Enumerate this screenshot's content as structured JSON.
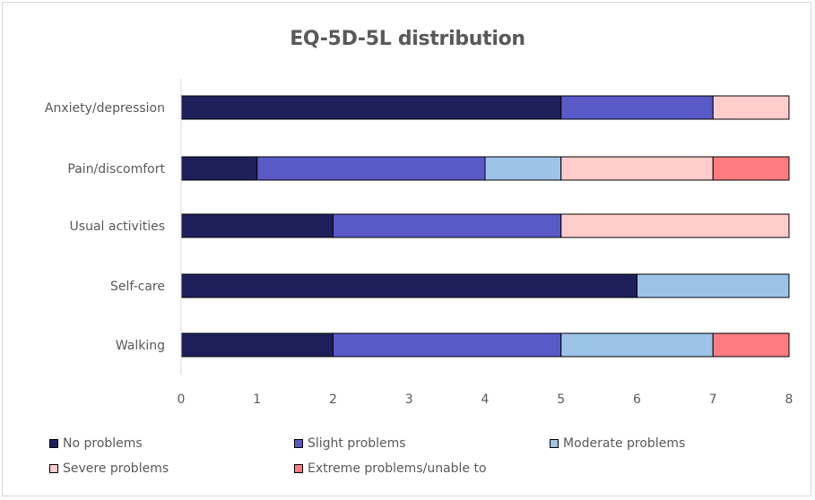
{
  "chart_data": {
    "type": "bar",
    "orientation": "horizontal",
    "stacked": true,
    "title": "EQ-5D-5L distribution",
    "xlabel": "",
    "ylabel": "",
    "xlim": [
      0,
      8
    ],
    "xticks": [
      "0",
      "1",
      "2",
      "3",
      "4",
      "5",
      "6",
      "7",
      "8"
    ],
    "categories": [
      "Anxiety/depression",
      "Pain/discomfort",
      "Usual activities",
      "Self-care",
      "Walking"
    ],
    "series": [
      {
        "name": "No problems",
        "color": "#1f1f5c",
        "values": [
          5,
          1,
          2,
          6,
          2
        ]
      },
      {
        "name": "Slight problems",
        "color": "#5a59c8",
        "values": [
          2,
          3,
          3,
          0,
          3
        ]
      },
      {
        "name": "Moderate problems",
        "color": "#9dc3e6",
        "values": [
          0,
          1,
          0,
          2,
          2
        ]
      },
      {
        "name": "Severe problems",
        "color": "#ffcccc",
        "values": [
          1,
          2,
          3,
          0,
          0
        ]
      },
      {
        "name": "Extreme problems/unable to",
        "color": "#ff7c80",
        "values": [
          0,
          1,
          0,
          0,
          1
        ]
      }
    ],
    "grid": false,
    "legend_position": "bottom"
  }
}
